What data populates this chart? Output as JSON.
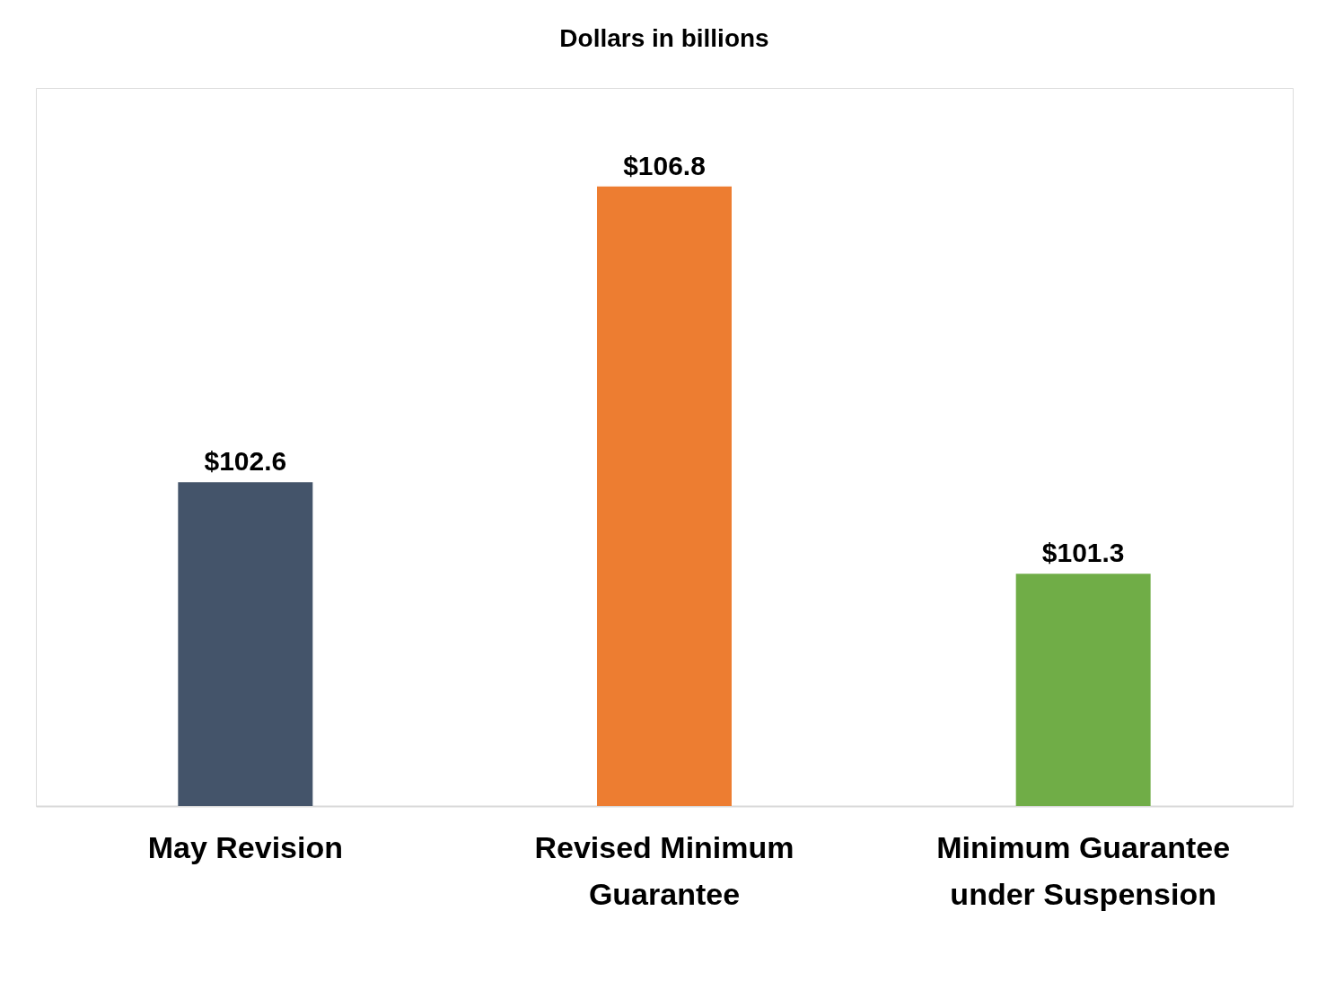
{
  "chart_data": {
    "type": "bar",
    "title": "Dollars in billions",
    "categories": [
      "May Revision",
      "Revised Minimum Guarantee",
      "Minimum Guarantee under Suspension"
    ],
    "values": [
      102.6,
      106.8,
      101.3
    ],
    "value_labels": [
      "$102.6",
      "$106.8",
      "$101.3"
    ],
    "colors": [
      "#44546a",
      "#ed7d31",
      "#70ad47"
    ],
    "ylim": [
      98,
      108.2
    ],
    "tick_labels": "x",
    "grid": false
  }
}
